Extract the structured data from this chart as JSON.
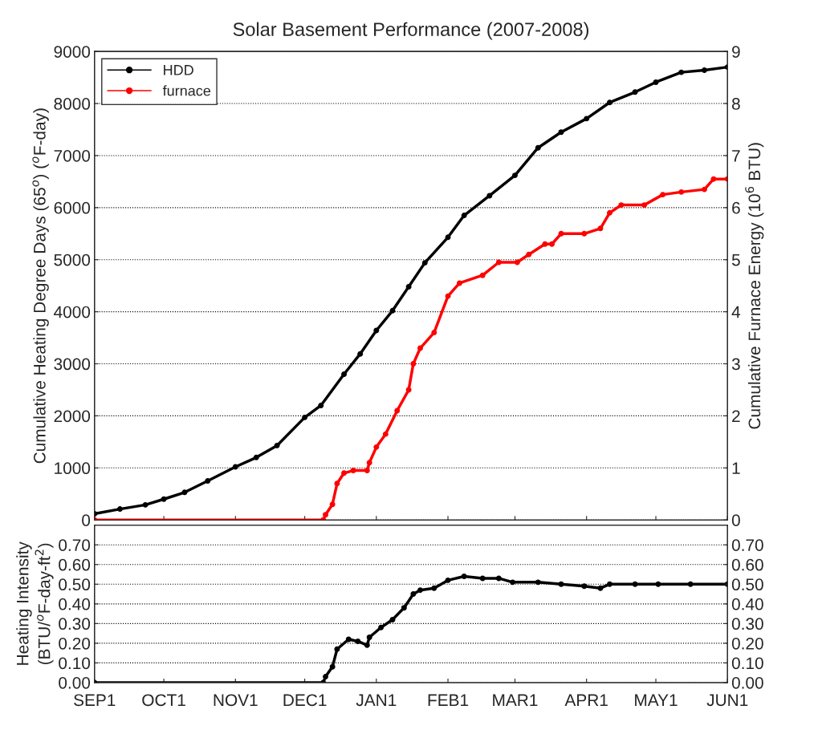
{
  "chart_data": [
    {
      "type": "line",
      "title": "Solar Basement Performance (2007-2008)",
      "ylabel": "Cumulative Heating Degree Days (65$^{o}$) ($^{o}$F-day)",
      "y2label": "Cumulative Furnace Energy (10$^{6}$ BTU)",
      "xlim": [
        "2007-09-01",
        "2008-06-01"
      ],
      "ylim": [
        0,
        9000
      ],
      "yticks": [
        0,
        1000,
        2000,
        3000,
        4000,
        5000,
        6000,
        7000,
        8000,
        9000
      ],
      "y2lim": [
        0,
        9
      ],
      "y2ticks": [
        0,
        1,
        2,
        3,
        4,
        5,
        6,
        7,
        8,
        9
      ],
      "grid": "y",
      "legend": "top left",
      "marker": "circle",
      "line_style": "solid",
      "tick_labels": "y",
      "series": [
        {
          "name": "HDD",
          "color": "#000000",
          "axis": "y",
          "x": [
            "2007-09-01",
            "2007-09-12",
            "2007-09-23",
            "2007-10-01",
            "2007-10-10",
            "2007-10-20",
            "2007-11-01",
            "2007-11-10",
            "2007-11-19",
            "2007-12-01",
            "2007-12-08",
            "2007-12-18",
            "2007-12-25",
            "2008-01-01",
            "2008-01-08",
            "2008-01-15",
            "2008-01-22",
            "2008-02-01",
            "2008-02-08",
            "2008-02-19",
            "2008-03-01",
            "2008-03-11",
            "2008-03-21",
            "2008-04-01",
            "2008-04-11",
            "2008-04-22",
            "2008-05-01",
            "2008-05-12",
            "2008-05-22",
            "2008-06-01"
          ],
          "values": [
            120,
            210,
            290,
            400,
            530,
            750,
            1020,
            1200,
            1430,
            1970,
            2200,
            2800,
            3190,
            3640,
            4020,
            4480,
            4940,
            5430,
            5850,
            6230,
            6620,
            7150,
            7450,
            7710,
            8020,
            8220,
            8410,
            8600,
            8640,
            8700
          ]
        },
        {
          "name": "furnace",
          "color": "#ff0000",
          "axis": "y2",
          "x": [
            "2007-09-01",
            "2007-12-09",
            "2007-12-10",
            "2007-12-13",
            "2007-12-15",
            "2007-12-18",
            "2007-12-22",
            "2007-12-28",
            "2007-12-29",
            "2008-01-01",
            "2008-01-05",
            "2008-01-10",
            "2008-01-15",
            "2008-01-17",
            "2008-01-20",
            "2008-01-26",
            "2008-02-01",
            "2008-02-06",
            "2008-02-16",
            "2008-02-23",
            "2008-03-02",
            "2008-03-07",
            "2008-03-14",
            "2008-03-17",
            "2008-03-21",
            "2008-03-31",
            "2008-04-07",
            "2008-04-11",
            "2008-04-16",
            "2008-04-26",
            "2008-05-04",
            "2008-05-12",
            "2008-05-22",
            "2008-05-26",
            "2008-06-01"
          ],
          "values": [
            0,
            0,
            0.1,
            0.3,
            0.7,
            0.9,
            0.95,
            0.95,
            1.1,
            1.4,
            1.65,
            2.1,
            2.5,
            3.0,
            3.3,
            3.6,
            4.3,
            4.55,
            4.7,
            4.95,
            4.95,
            5.1,
            5.3,
            5.3,
            5.5,
            5.5,
            5.6,
            5.9,
            6.05,
            6.05,
            6.25,
            6.3,
            6.35,
            6.55,
            6.55
          ]
        }
      ]
    },
    {
      "type": "line",
      "ylabel": "Heating Intensity\n(BTU/$^{o}$F-day-ft$^{2}$)",
      "xlim": [
        "2007-09-01",
        "2008-06-01"
      ],
      "xticks": [
        {
          "value": "2007-09-01",
          "label": "SEP1"
        },
        {
          "value": "2007-10-01",
          "label": "OCT1"
        },
        {
          "value": "2007-11-01",
          "label": "NOV1"
        },
        {
          "value": "2007-12-01",
          "label": "DEC1"
        },
        {
          "value": "2008-01-01",
          "label": "JAN1"
        },
        {
          "value": "2008-02-01",
          "label": "FEB1"
        },
        {
          "value": "2008-03-01",
          "label": "MAR1"
        },
        {
          "value": "2008-04-01",
          "label": "APR1"
        },
        {
          "value": "2008-05-01",
          "label": "MAY1"
        },
        {
          "value": "2008-06-01",
          "label": "JUN1"
        }
      ],
      "ylim": [
        0,
        0.8
      ],
      "yticks": [
        {
          "value": 0,
          "label": "0.00"
        },
        {
          "value": 0.1,
          "label": "0.10"
        },
        {
          "value": 0.2,
          "label": "0.20"
        },
        {
          "value": 0.3,
          "label": "0.30"
        },
        {
          "value": 0.4,
          "label": "0.40"
        },
        {
          "value": 0.5,
          "label": "0.50"
        },
        {
          "value": 0.6,
          "label": "0.60"
        },
        {
          "value": 0.7,
          "label": "0.70"
        }
      ],
      "y2lim": [
        0,
        0.8
      ],
      "y2ticks": [
        {
          "value": 0,
          "label": "0.00"
        },
        {
          "value": 0.1,
          "label": "0.10"
        },
        {
          "value": 0.2,
          "label": "0.20"
        },
        {
          "value": 0.3,
          "label": "0.30"
        },
        {
          "value": 0.4,
          "label": "0.40"
        },
        {
          "value": 0.5,
          "label": "0.50"
        },
        {
          "value": 0.6,
          "label": "0.60"
        },
        {
          "value": 0.7,
          "label": "0.70"
        }
      ],
      "grid": "y",
      "marker": "circle",
      "line_style": "solid",
      "series": [
        {
          "color": "#000000",
          "axis": "y",
          "x": [
            "2007-09-01",
            "2007-12-09",
            "2007-12-10",
            "2007-12-13",
            "2007-12-15",
            "2007-12-20",
            "2007-12-24",
            "2007-12-28",
            "2007-12-29",
            "2008-01-03",
            "2008-01-08",
            "2008-01-13",
            "2008-01-17",
            "2008-01-20",
            "2008-01-26",
            "2008-02-01",
            "2008-02-08",
            "2008-02-16",
            "2008-02-23",
            "2008-02-29",
            "2008-03-11",
            "2008-03-21",
            "2008-03-31",
            "2008-04-07",
            "2008-04-11",
            "2008-04-22",
            "2008-05-02",
            "2008-05-16",
            "2008-06-01"
          ],
          "values": [
            0,
            0,
            0.03,
            0.08,
            0.17,
            0.22,
            0.21,
            0.19,
            0.23,
            0.28,
            0.32,
            0.38,
            0.45,
            0.47,
            0.48,
            0.52,
            0.54,
            0.53,
            0.53,
            0.51,
            0.51,
            0.5,
            0.49,
            0.48,
            0.5,
            0.5,
            0.5,
            0.5,
            0.5
          ]
        }
      ]
    }
  ]
}
